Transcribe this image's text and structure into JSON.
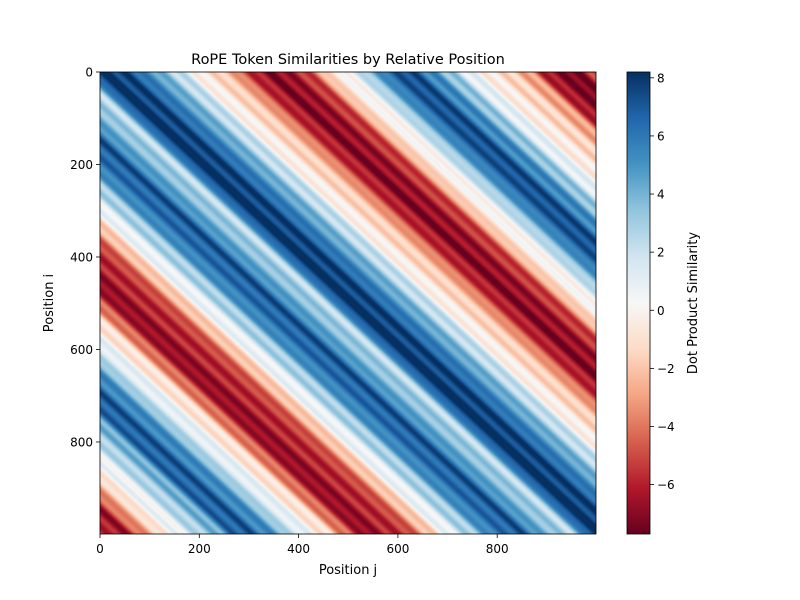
{
  "chart_data": {
    "type": "heatmap",
    "title": "RoPE Token Similarities by Relative Position",
    "xlabel": "Position j",
    "ylabel": "Position i",
    "x_range": [
      0,
      999
    ],
    "y_range": [
      0,
      999
    ],
    "y_inverted": true,
    "x_ticks": [
      0,
      200,
      400,
      600,
      800
    ],
    "y_ticks": [
      0,
      200,
      400,
      600,
      800
    ],
    "colormap": "RdBu",
    "colormap_stops": [
      "#67001f",
      "#b2182b",
      "#d6604d",
      "#f4a582",
      "#fddbc7",
      "#f7f7f7",
      "#d1e5f0",
      "#92c5de",
      "#4393c3",
      "#2166ac",
      "#053061"
    ],
    "value_range": [
      -7.7,
      8.2
    ],
    "value_function": "depends on relative position (j - i); constant along diagonals",
    "profile": {
      "description": "similarity value at each offset d = j - i",
      "offsets": [
        -999,
        -950,
        -900,
        -870,
        -840,
        -790,
        -760,
        -730,
        -700,
        -650,
        -600,
        -540,
        -500,
        -460,
        -420,
        -380,
        -340,
        -300,
        -250,
        -200,
        -150,
        -100,
        -50,
        0,
        50,
        100,
        150,
        200,
        250,
        300,
        340,
        380,
        420,
        460,
        500,
        540,
        580,
        620,
        660,
        700,
        740,
        780,
        820,
        860,
        900,
        950,
        999
      ],
      "values": [
        -5.5,
        -6.5,
        -3.0,
        -0.5,
        0.5,
        3.0,
        4.0,
        6.5,
        7.0,
        5.0,
        1.5,
        -1.0,
        -4.5,
        -7.0,
        -6.0,
        -5.5,
        -2.5,
        0.5,
        3.0,
        6.0,
        7.0,
        4.0,
        2.5,
        8.2,
        7.5,
        5.0,
        2.5,
        -0.5,
        -2.0,
        -5.5,
        -7.2,
        -6.5,
        -5.0,
        -1.0,
        0.5,
        3.5,
        6.5,
        7.5,
        5.5,
        3.5,
        1.0,
        -0.5,
        -1.5,
        -3.0,
        -6.5,
        -7.5,
        -5.0
      ]
    },
    "colorbar": {
      "label": "Dot Product Similarity",
      "ticks": [
        -6,
        -4,
        -2,
        0,
        2,
        4,
        6,
        8
      ]
    }
  }
}
